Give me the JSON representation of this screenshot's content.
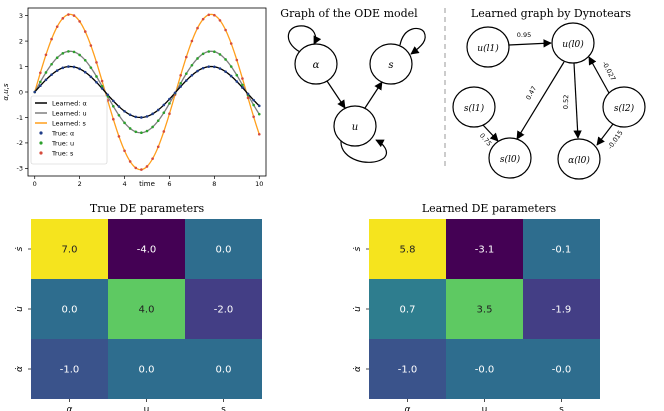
{
  "chart_data": [
    {
      "type": "line",
      "xlabel": "time",
      "ylabel": "α,u,s",
      "xlim": [
        -0.3,
        10.3
      ],
      "ylim": [
        -3.3,
        3.3
      ],
      "x_ticks": [
        "0",
        "2",
        "4",
        "6",
        "8",
        "10"
      ],
      "y_ticks": [
        "3",
        "2",
        "1",
        "0",
        "-1",
        "-2",
        "-3"
      ],
      "amplitudes": {
        "alpha": 1.0,
        "u": 1.6,
        "s": 3.05
      },
      "legend": [
        "Learned: α",
        "Learned: u",
        "Learned: s",
        "True: α",
        "True: u",
        "True: s"
      ],
      "series_colors": {
        "learned_alpha": "#000000",
        "learned_u": "#7f7f7f",
        "learned_s": "#ff9f1c",
        "true_alpha": "#1f3c88",
        "true_u": "#2ca02c",
        "true_s": "#d64b3c"
      }
    },
    {
      "type": "graph",
      "title": "Graph of the ODE model",
      "nodes": [
        "α",
        "s",
        "u"
      ],
      "edges": [
        [
          "α",
          "α"
        ],
        [
          "s",
          "s"
        ],
        [
          "u",
          "u"
        ],
        [
          "α",
          "u"
        ],
        [
          "u",
          "s"
        ]
      ]
    },
    {
      "type": "graph",
      "title": "Learned graph by Dynotears",
      "nodes": [
        "u(l1)",
        "u(l0)",
        "s(l1)",
        "s(l2)",
        "s(l0)",
        "α(l0)"
      ],
      "edges": [
        {
          "from": "u(l1)",
          "to": "u(l0)",
          "label": "0.95"
        },
        {
          "from": "u(l0)",
          "to": "s(l0)",
          "label": "0.47"
        },
        {
          "from": "u(l0)",
          "to": "α(l0)",
          "label": "0.52"
        },
        {
          "from": "s(l2)",
          "to": "u(l0)",
          "label": "-0.027"
        },
        {
          "from": "s(l2)",
          "to": "α(l0)",
          "label": "-0.015"
        },
        {
          "from": "s(l1)",
          "to": "s(l0)",
          "label": "0.75"
        }
      ]
    },
    {
      "type": "heatmap",
      "title": "True DE parameters",
      "columns": [
        "α",
        "u",
        "s"
      ],
      "rows": [
        "ṡ",
        "u̇",
        "α̇"
      ],
      "values": [
        [
          7.0,
          -4.0,
          0.0
        ],
        [
          0.0,
          4.0,
          -2.0
        ],
        [
          -1.0,
          0.0,
          0.0
        ]
      ],
      "labels": [
        [
          "7.0",
          "-4.0",
          "0.0"
        ],
        [
          "0.0",
          "4.0",
          "-2.0"
        ],
        [
          "-1.0",
          "0.0",
          "0.0"
        ]
      ],
      "colors": [
        [
          "#f5e41e",
          "#440154",
          "#2e6d8e"
        ],
        [
          "#2e6d8e",
          "#5ec962",
          "#433e85"
        ],
        [
          "#3a538b",
          "#2e6d8e",
          "#2e6d8e"
        ]
      ]
    },
    {
      "type": "heatmap",
      "title": "Learned DE parameters",
      "columns": [
        "α",
        "u",
        "s"
      ],
      "rows": [
        "ṡ",
        "u̇",
        "α̇"
      ],
      "values": [
        [
          5.8,
          -3.1,
          -0.1
        ],
        [
          0.7,
          3.5,
          -1.9
        ],
        [
          -1.0,
          -0.0,
          -0.0
        ]
      ],
      "labels": [
        [
          "5.8",
          "-3.1",
          "-0.1"
        ],
        [
          "0.7",
          "3.5",
          "-1.9"
        ],
        [
          "-1.0",
          "-0.0",
          "-0.0"
        ]
      ],
      "colors": [
        [
          "#f5e41e",
          "#440154",
          "#2e6d8e"
        ],
        [
          "#2e7d8e",
          "#5ec962",
          "#433e85"
        ],
        [
          "#3a538b",
          "#2e6d8e",
          "#2e6d8e"
        ]
      ]
    }
  ]
}
